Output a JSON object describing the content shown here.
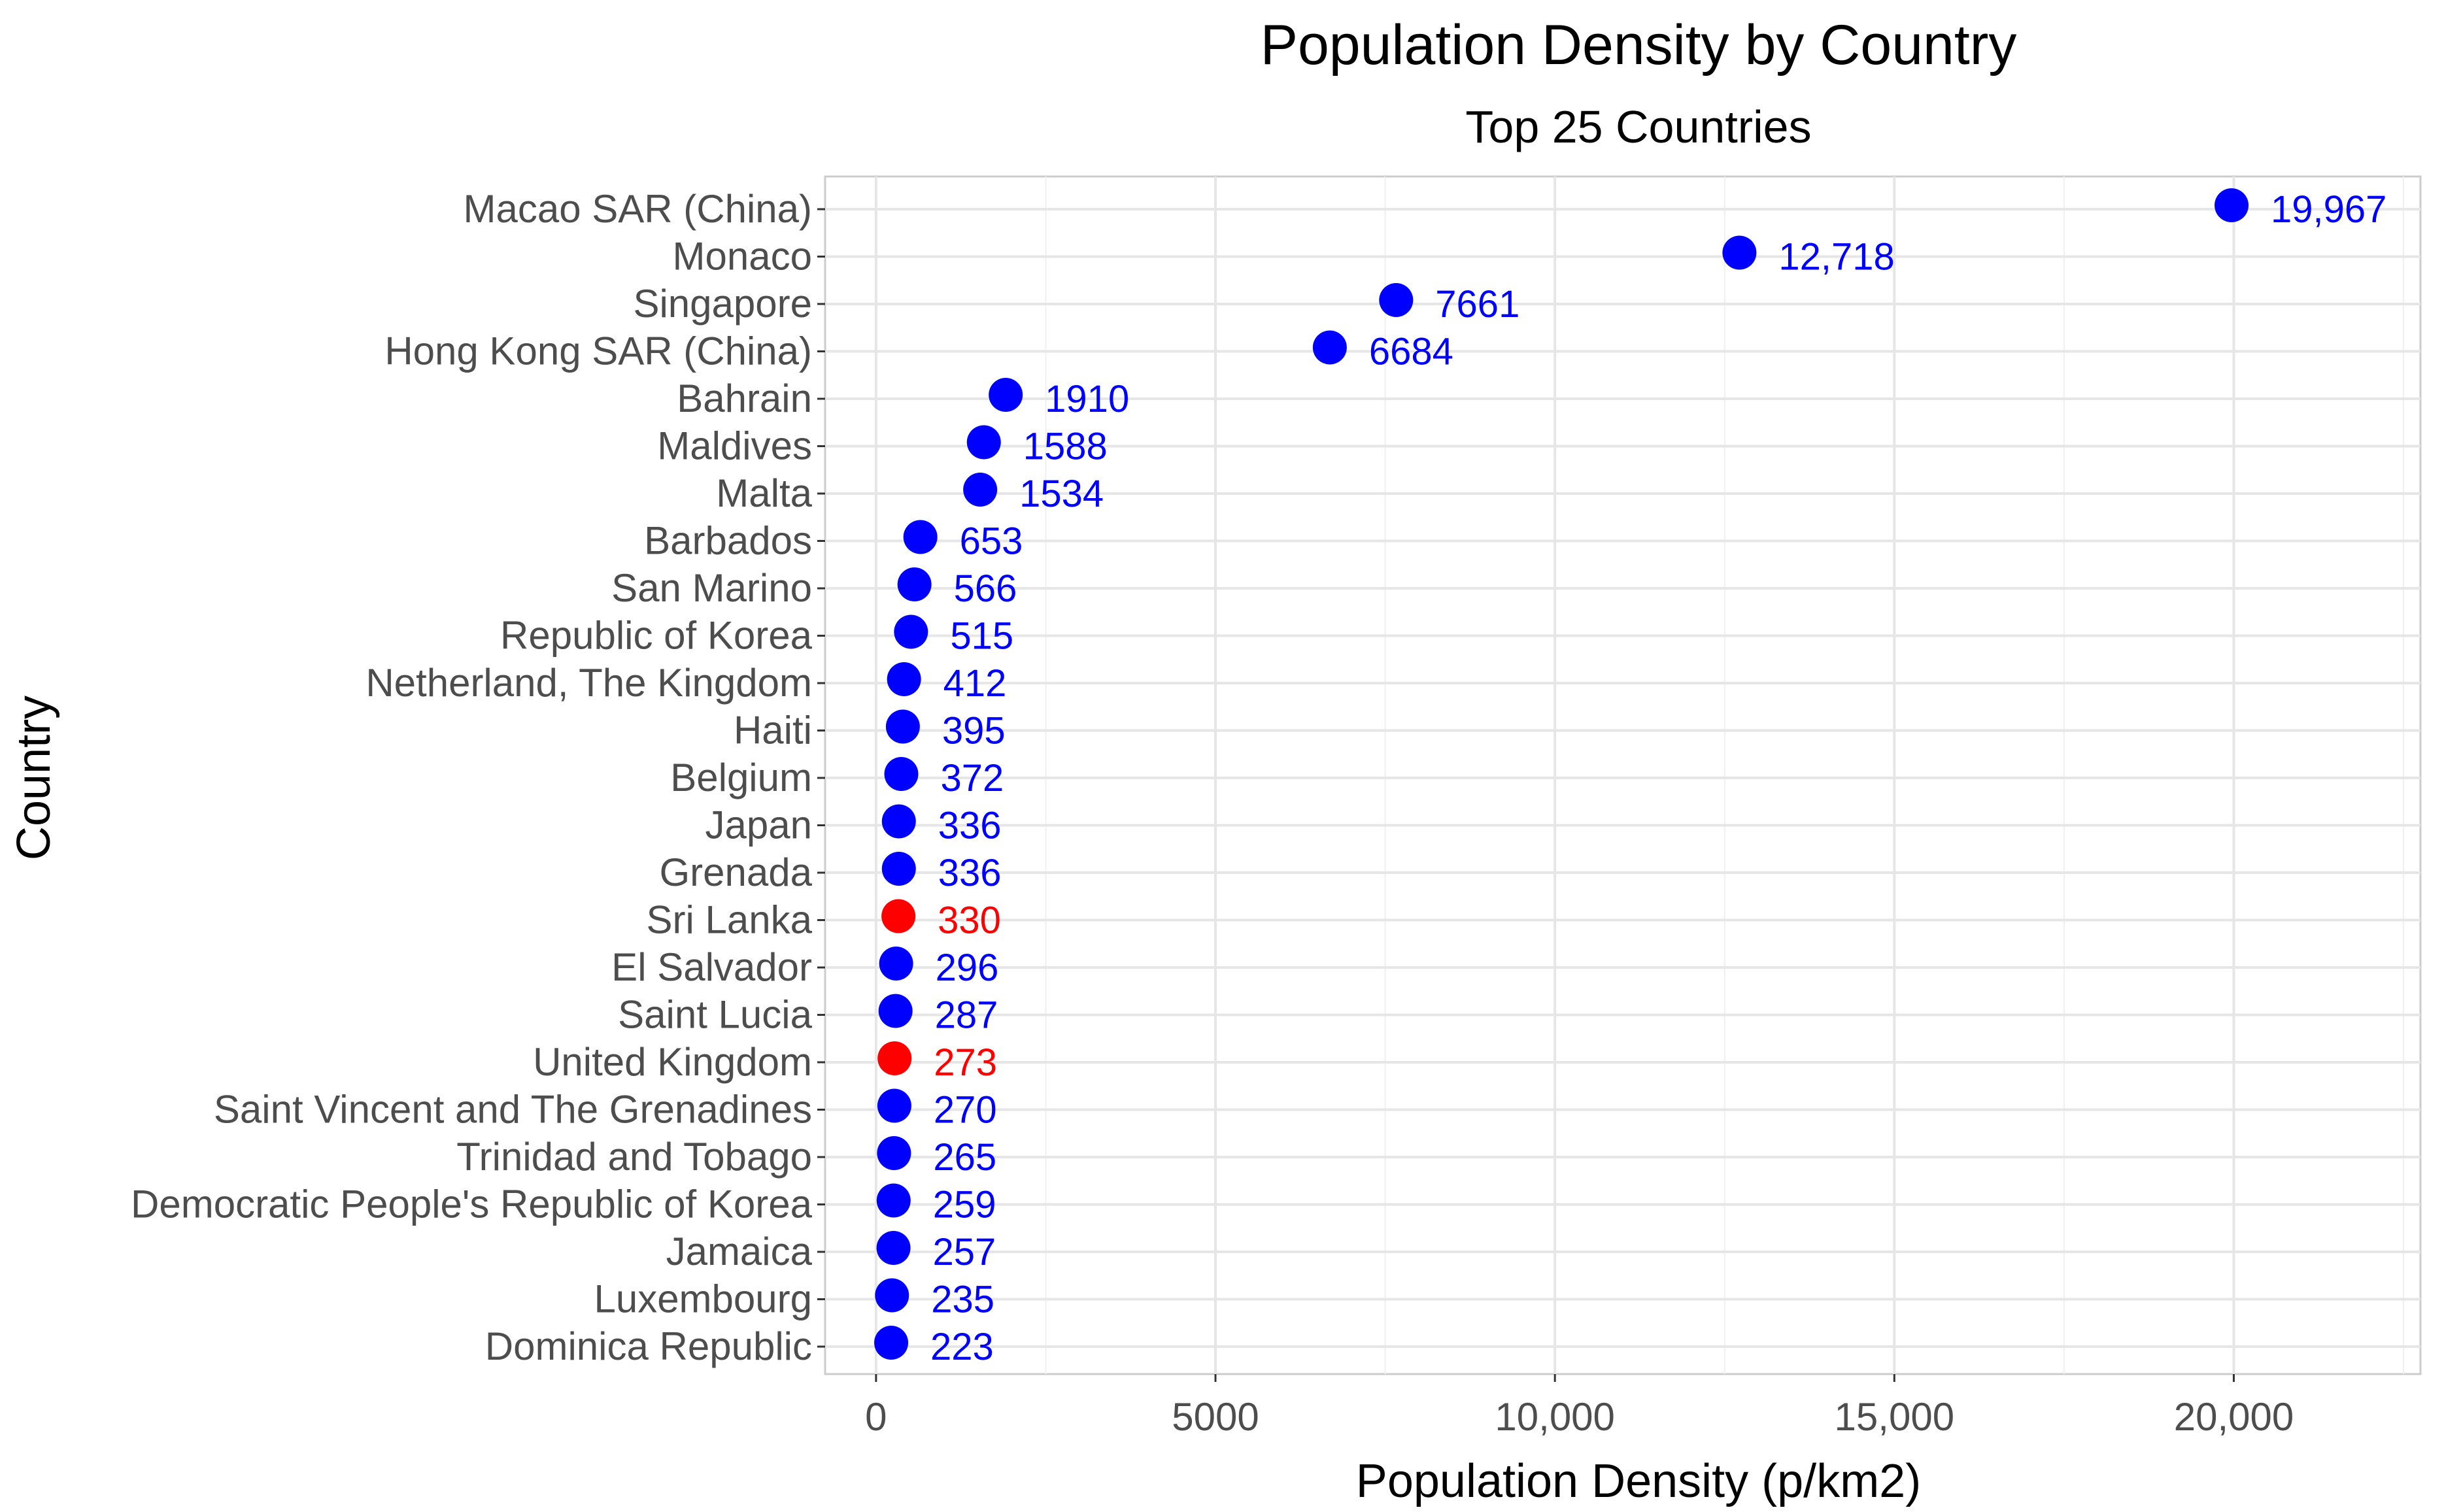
{
  "chart_data": {
    "type": "scatter",
    "title": "Population Density by Country",
    "subtitle": "Top 25 Countries",
    "xlabel": "Population Density (p/km2)",
    "ylabel": "Country",
    "xlim": [
      -750,
      22750
    ],
    "xticks": [
      0,
      5000,
      10000,
      15000,
      20000
    ],
    "xtick_labels": [
      "0",
      "5000",
      "10,000",
      "15,000",
      "20,000"
    ],
    "grid": true,
    "categories": [
      "Macao SAR (China)",
      "Monaco",
      "Singapore",
      "Hong Kong SAR (China)",
      "Bahrain",
      "Maldives",
      "Malta",
      "Barbados",
      "San Marino",
      "Republic of Korea",
      "Netherland, The Kingdom",
      "Haiti",
      "Belgium",
      "Japan",
      "Grenada",
      "Sri Lanka",
      "El Salvador",
      "Saint Lucia",
      "United Kingdom",
      "Saint Vincent and The Grenadines",
      "Trinidad and Tobago",
      "Democratic People's Republic of Korea",
      "Jamaica",
      "Luxembourg",
      "Dominica Republic"
    ],
    "values": [
      19967,
      12718,
      7661,
      6684,
      1910,
      1588,
      1534,
      653,
      566,
      515,
      412,
      395,
      372,
      336,
      336,
      330,
      296,
      287,
      273,
      270,
      265,
      259,
      257,
      235,
      223
    ],
    "value_labels": [
      "19,967",
      "12,718",
      "7661",
      "6684",
      "1910",
      "1588",
      "1534",
      "653",
      "566",
      "515",
      "412",
      "395",
      "372",
      "336",
      "336",
      "330",
      "296",
      "287",
      "273",
      "270",
      "265",
      "259",
      "257",
      "235",
      "223"
    ],
    "highlighted": [
      "Sri Lanka",
      "United Kingdom"
    ],
    "colors": {
      "default": "#0000ff",
      "highlight": "#ff0000",
      "grid": "#e6e6e6",
      "panel_border": "#cccccc"
    }
  }
}
